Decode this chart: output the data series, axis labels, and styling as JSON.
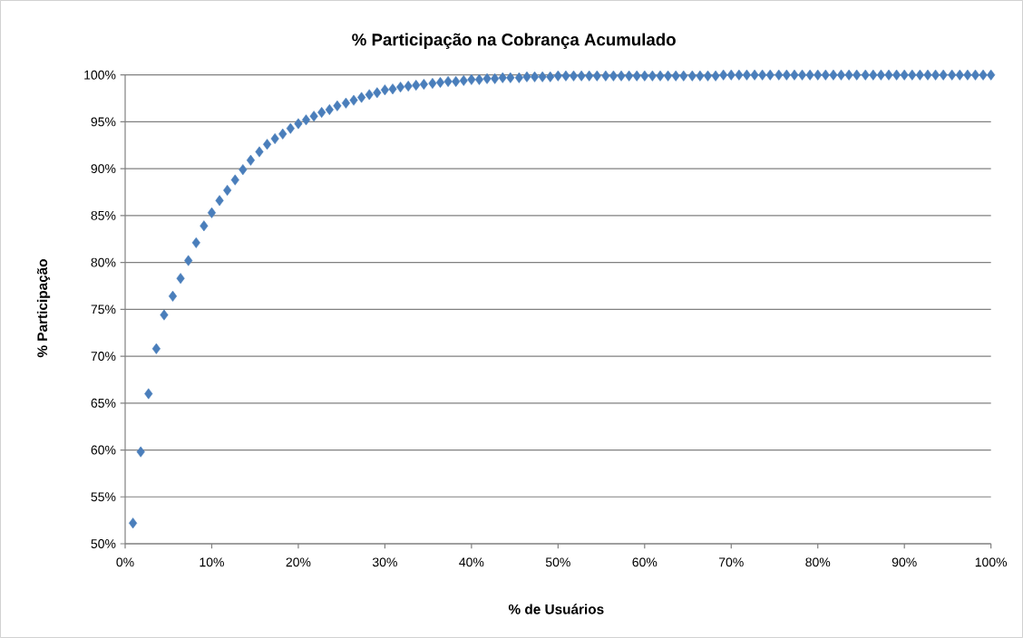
{
  "chart_data": {
    "type": "scatter",
    "title": "% Participação na Cobrança Acumulado",
    "xlabel": "% de Usuários",
    "ylabel": "% Participação",
    "color": "#4a7ebb",
    "marker": "diamond",
    "grid": "y",
    "x": [
      0.9,
      1.8,
      2.7,
      3.6,
      4.5,
      5.5,
      6.4,
      7.3,
      8.2,
      9.1,
      10.0,
      10.9,
      11.8,
      12.7,
      13.6,
      14.5,
      15.5,
      16.4,
      17.3,
      18.2,
      19.1,
      20.0,
      20.9,
      21.8,
      22.7,
      23.6,
      24.5,
      25.5,
      26.4,
      27.3,
      28.2,
      29.1,
      30.0,
      30.9,
      31.8,
      32.7,
      33.6,
      34.5,
      35.5,
      36.4,
      37.3,
      38.2,
      39.1,
      40.0,
      40.9,
      41.8,
      42.7,
      43.6,
      44.5,
      45.5,
      46.4,
      47.3,
      48.2,
      49.1,
      50.0,
      50.9,
      51.8,
      52.7,
      53.6,
      54.5,
      55.5,
      56.4,
      57.3,
      58.2,
      59.1,
      60.0,
      60.9,
      61.8,
      62.7,
      63.6,
      64.5,
      65.5,
      66.4,
      67.3,
      68.2,
      69.1,
      70.0,
      70.9,
      71.8,
      72.7,
      73.6,
      74.5,
      75.5,
      76.4,
      77.3,
      78.2,
      79.1,
      80.0,
      80.9,
      81.8,
      82.7,
      83.6,
      84.5,
      85.5,
      86.4,
      87.3,
      88.2,
      89.1,
      90.0,
      90.9,
      91.8,
      92.7,
      93.6,
      94.5,
      95.5,
      96.4,
      97.3,
      98.2,
      99.1,
      100.0
    ],
    "values": [
      52.2,
      59.8,
      66.0,
      70.8,
      74.4,
      76.4,
      78.3,
      80.2,
      82.1,
      83.9,
      85.3,
      86.6,
      87.7,
      88.8,
      89.9,
      90.9,
      91.8,
      92.6,
      93.2,
      93.7,
      94.3,
      94.8,
      95.2,
      95.6,
      96.0,
      96.3,
      96.7,
      97.0,
      97.3,
      97.6,
      97.9,
      98.1,
      98.4,
      98.5,
      98.7,
      98.8,
      98.9,
      99.0,
      99.1,
      99.2,
      99.3,
      99.3,
      99.4,
      99.5,
      99.5,
      99.6,
      99.6,
      99.7,
      99.7,
      99.7,
      99.8,
      99.8,
      99.8,
      99.8,
      99.9,
      99.9,
      99.9,
      99.9,
      99.9,
      99.9,
      99.9,
      99.9,
      99.9,
      99.9,
      99.9,
      99.9,
      99.9,
      99.9,
      99.9,
      99.9,
      99.9,
      99.9,
      99.9,
      99.9,
      99.9,
      100,
      100,
      100,
      100,
      100,
      100,
      100,
      100,
      100,
      100,
      100,
      100,
      100,
      100,
      100,
      100,
      100,
      100,
      100,
      100,
      100,
      100,
      100,
      100,
      100,
      100,
      100,
      100,
      100,
      100,
      100,
      100,
      100,
      100,
      100
    ],
    "xlim": [
      0,
      100
    ],
    "xticks": [
      {
        "value": 0,
        "label": "0%"
      },
      {
        "value": 10,
        "label": "10%"
      },
      {
        "value": 20,
        "label": "20%"
      },
      {
        "value": 30,
        "label": "30%"
      },
      {
        "value": 40,
        "label": "40%"
      },
      {
        "value": 50,
        "label": "50%"
      },
      {
        "value": 60,
        "label": "60%"
      },
      {
        "value": 70,
        "label": "70%"
      },
      {
        "value": 80,
        "label": "80%"
      },
      {
        "value": 90,
        "label": "90%"
      },
      {
        "value": 100,
        "label": "100%"
      }
    ],
    "ylim": [
      50,
      100
    ],
    "yticks": [
      {
        "value": 50,
        "label": "50%"
      },
      {
        "value": 55,
        "label": "55%"
      },
      {
        "value": 60,
        "label": "60%"
      },
      {
        "value": 65,
        "label": "65%"
      },
      {
        "value": 70,
        "label": "70%"
      },
      {
        "value": 75,
        "label": "75%"
      },
      {
        "value": 80,
        "label": "80%"
      },
      {
        "value": 85,
        "label": "85%"
      },
      {
        "value": 90,
        "label": "90%"
      },
      {
        "value": 95,
        "label": "95%"
      },
      {
        "value": 100,
        "label": "100%"
      }
    ]
  }
}
